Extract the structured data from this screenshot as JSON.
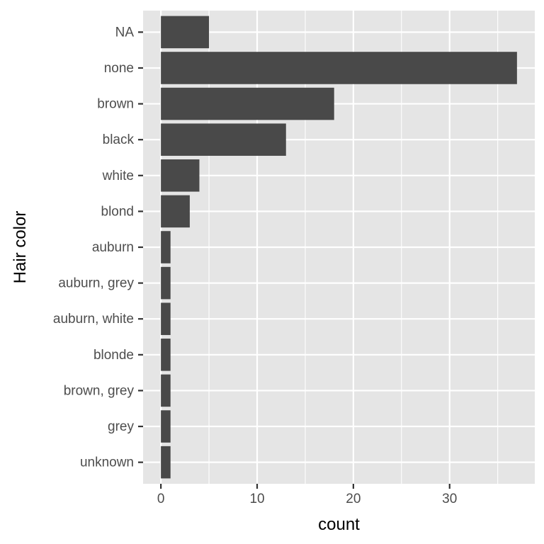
{
  "chart_data": {
    "type": "bar",
    "orientation": "horizontal",
    "categories": [
      "NA",
      "none",
      "brown",
      "black",
      "white",
      "blond",
      "auburn",
      "auburn, grey",
      "auburn, white",
      "blonde",
      "brown, grey",
      "grey",
      "unknown"
    ],
    "values": [
      5,
      37,
      18,
      13,
      4,
      3,
      1,
      1,
      1,
      1,
      1,
      1,
      1
    ],
    "xlabel": "count",
    "ylabel": "Hair color",
    "xlim": [
      -1.85,
      38.85
    ],
    "xticks": [
      0,
      10,
      20,
      30
    ],
    "xminor": [
      5,
      15,
      25,
      35
    ],
    "grid": true,
    "colors": {
      "bar": "#494949",
      "panel": "#e5e5e5",
      "grid": "#ffffff",
      "text": "#4d4d4d"
    }
  }
}
